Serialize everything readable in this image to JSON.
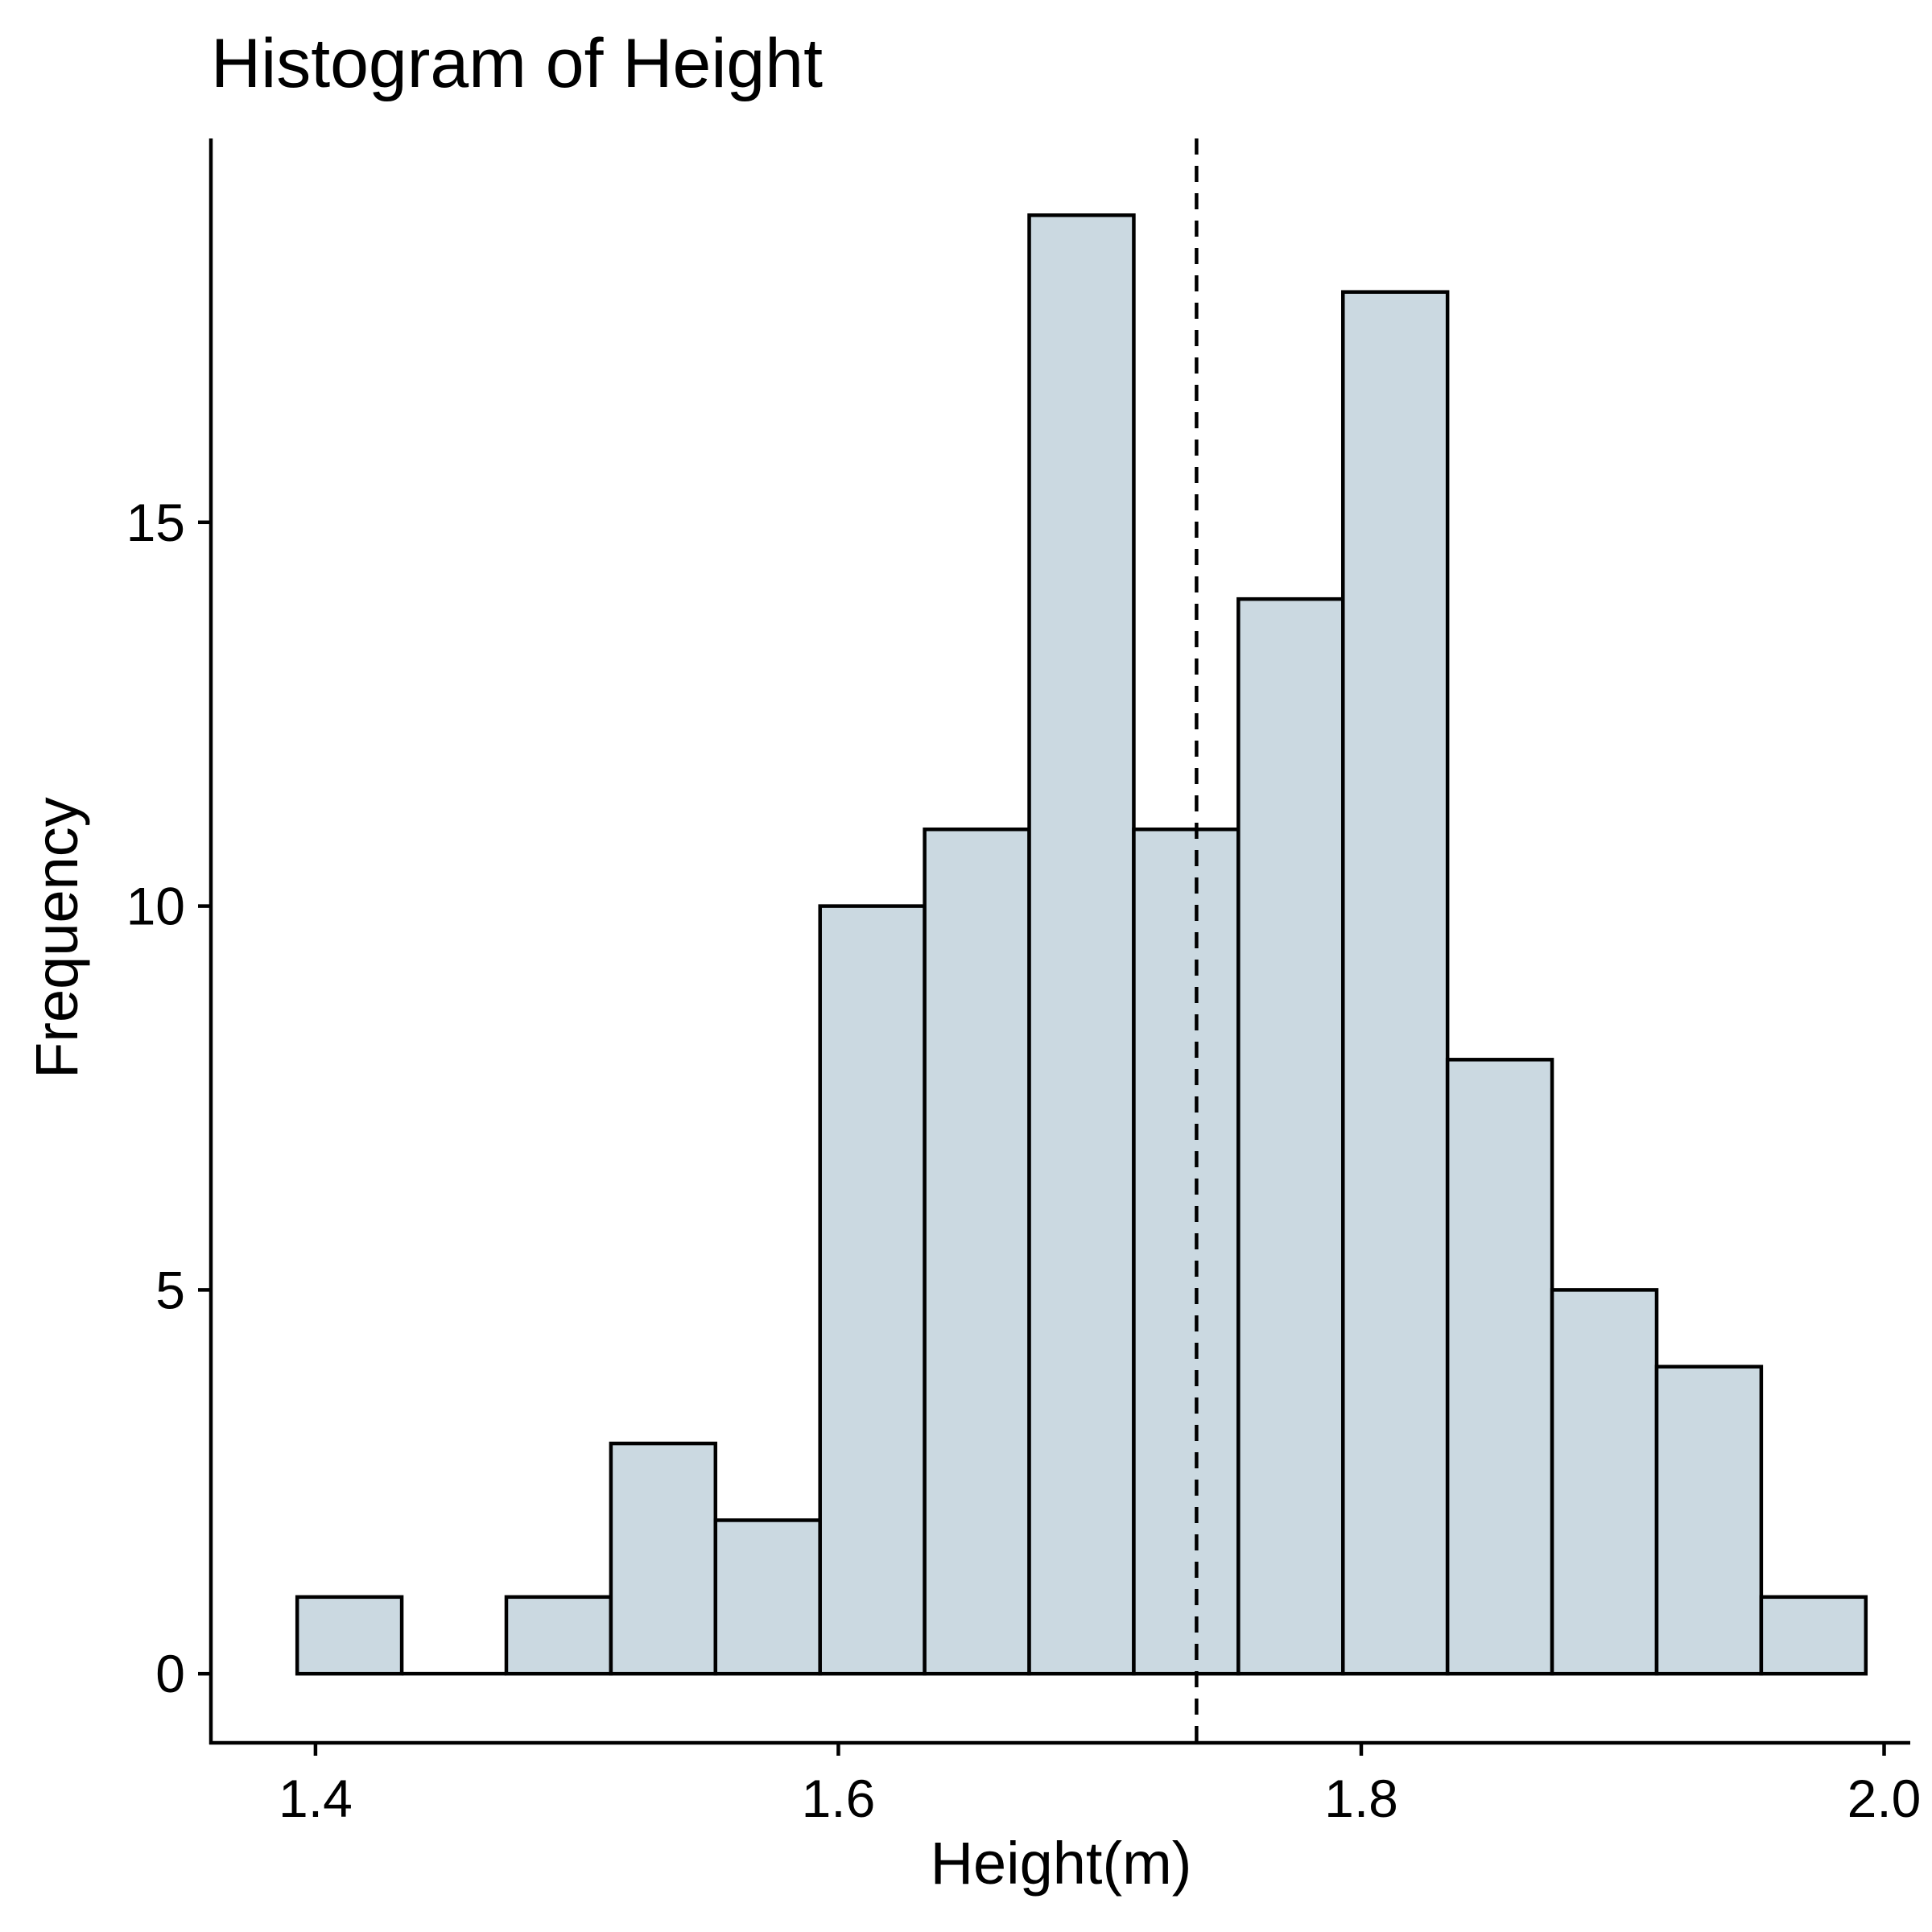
{
  "chart_data": {
    "type": "bar",
    "title": "Histogram of Height",
    "xlabel": "Height(m)",
    "ylabel": "Frequency",
    "xlim": [
      1.36,
      2.01
    ],
    "ylim": [
      -0.9,
      20
    ],
    "xticks": [
      1.4,
      1.6,
      1.8,
      2.0
    ],
    "xtick_labels": [
      "1.4",
      "1.6",
      "1.8",
      "2.0"
    ],
    "yticks": [
      0,
      5,
      10,
      15
    ],
    "ytick_labels": [
      "0",
      "5",
      "10",
      "15"
    ],
    "grid": false,
    "bar_color": "#cbd9e1",
    "bins": [
      {
        "x0": 1.393,
        "x1": 1.433,
        "count": 1
      },
      {
        "x0": 1.433,
        "x1": 1.473,
        "count": 0
      },
      {
        "x0": 1.473,
        "x1": 1.513,
        "count": 1
      },
      {
        "x0": 1.513,
        "x1": 1.553,
        "count": 3
      },
      {
        "x0": 1.553,
        "x1": 1.593,
        "count": 2
      },
      {
        "x0": 1.593,
        "x1": 1.633,
        "count": 10
      },
      {
        "x0": 1.633,
        "x1": 1.673,
        "count": 11
      },
      {
        "x0": 1.673,
        "x1": 1.713,
        "count": 19
      },
      {
        "x0": 1.713,
        "x1": 1.753,
        "count": 11
      },
      {
        "x0": 1.753,
        "x1": 1.793,
        "count": 14
      },
      {
        "x0": 1.793,
        "x1": 1.833,
        "count": 18
      },
      {
        "x0": 1.833,
        "x1": 1.873,
        "count": 8
      },
      {
        "x0": 1.873,
        "x1": 1.913,
        "count": 5
      },
      {
        "x0": 1.913,
        "x1": 1.953,
        "count": 4
      },
      {
        "x0": 1.953,
        "x1": 1.993,
        "count": 1
      }
    ],
    "mean_line": {
      "x": 1.737,
      "style": "dashed"
    }
  }
}
